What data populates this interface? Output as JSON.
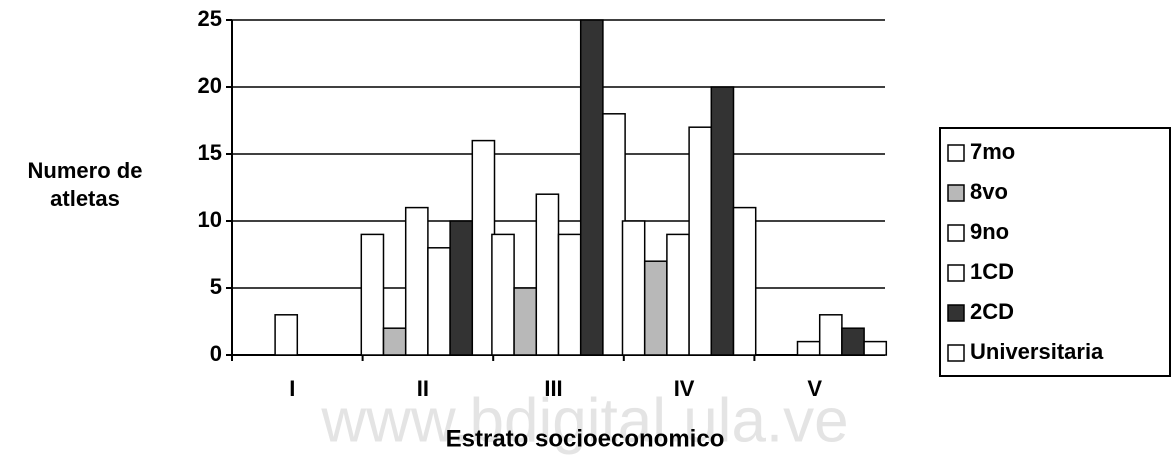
{
  "chart_data": {
    "type": "bar",
    "watermark": "www.bdigital.ula.ve",
    "xlabel": "Estrato socioeconomico",
    "ylabel": [
      "Numero de",
      "atletas"
    ],
    "categories": [
      "I",
      "II",
      "III",
      "IV",
      "V"
    ],
    "series": [
      {
        "name": "7mo",
        "color": "#ffffff",
        "values": [
          0,
          9,
          9,
          10,
          0
        ]
      },
      {
        "name": "8vo",
        "color": "#b8b8b8",
        "values": [
          0,
          2,
          5,
          7,
          0
        ]
      },
      {
        "name": "9no",
        "color": "#ffffff",
        "values": [
          3,
          11,
          12,
          9,
          1
        ]
      },
      {
        "name": "1CD",
        "color": "#ffffff",
        "values": [
          0,
          8,
          9,
          17,
          3
        ]
      },
      {
        "name": "2CD",
        "color": "#333333",
        "values": [
          0,
          10,
          25,
          20,
          2
        ]
      },
      {
        "name": "Universitaria",
        "color": "#ffffff",
        "values": [
          0,
          16,
          18,
          11,
          1
        ]
      }
    ],
    "ylim": [
      0,
      25
    ],
    "yticks": [
      0,
      5,
      10,
      15,
      20,
      25
    ],
    "grid": true,
    "legend": "right"
  }
}
